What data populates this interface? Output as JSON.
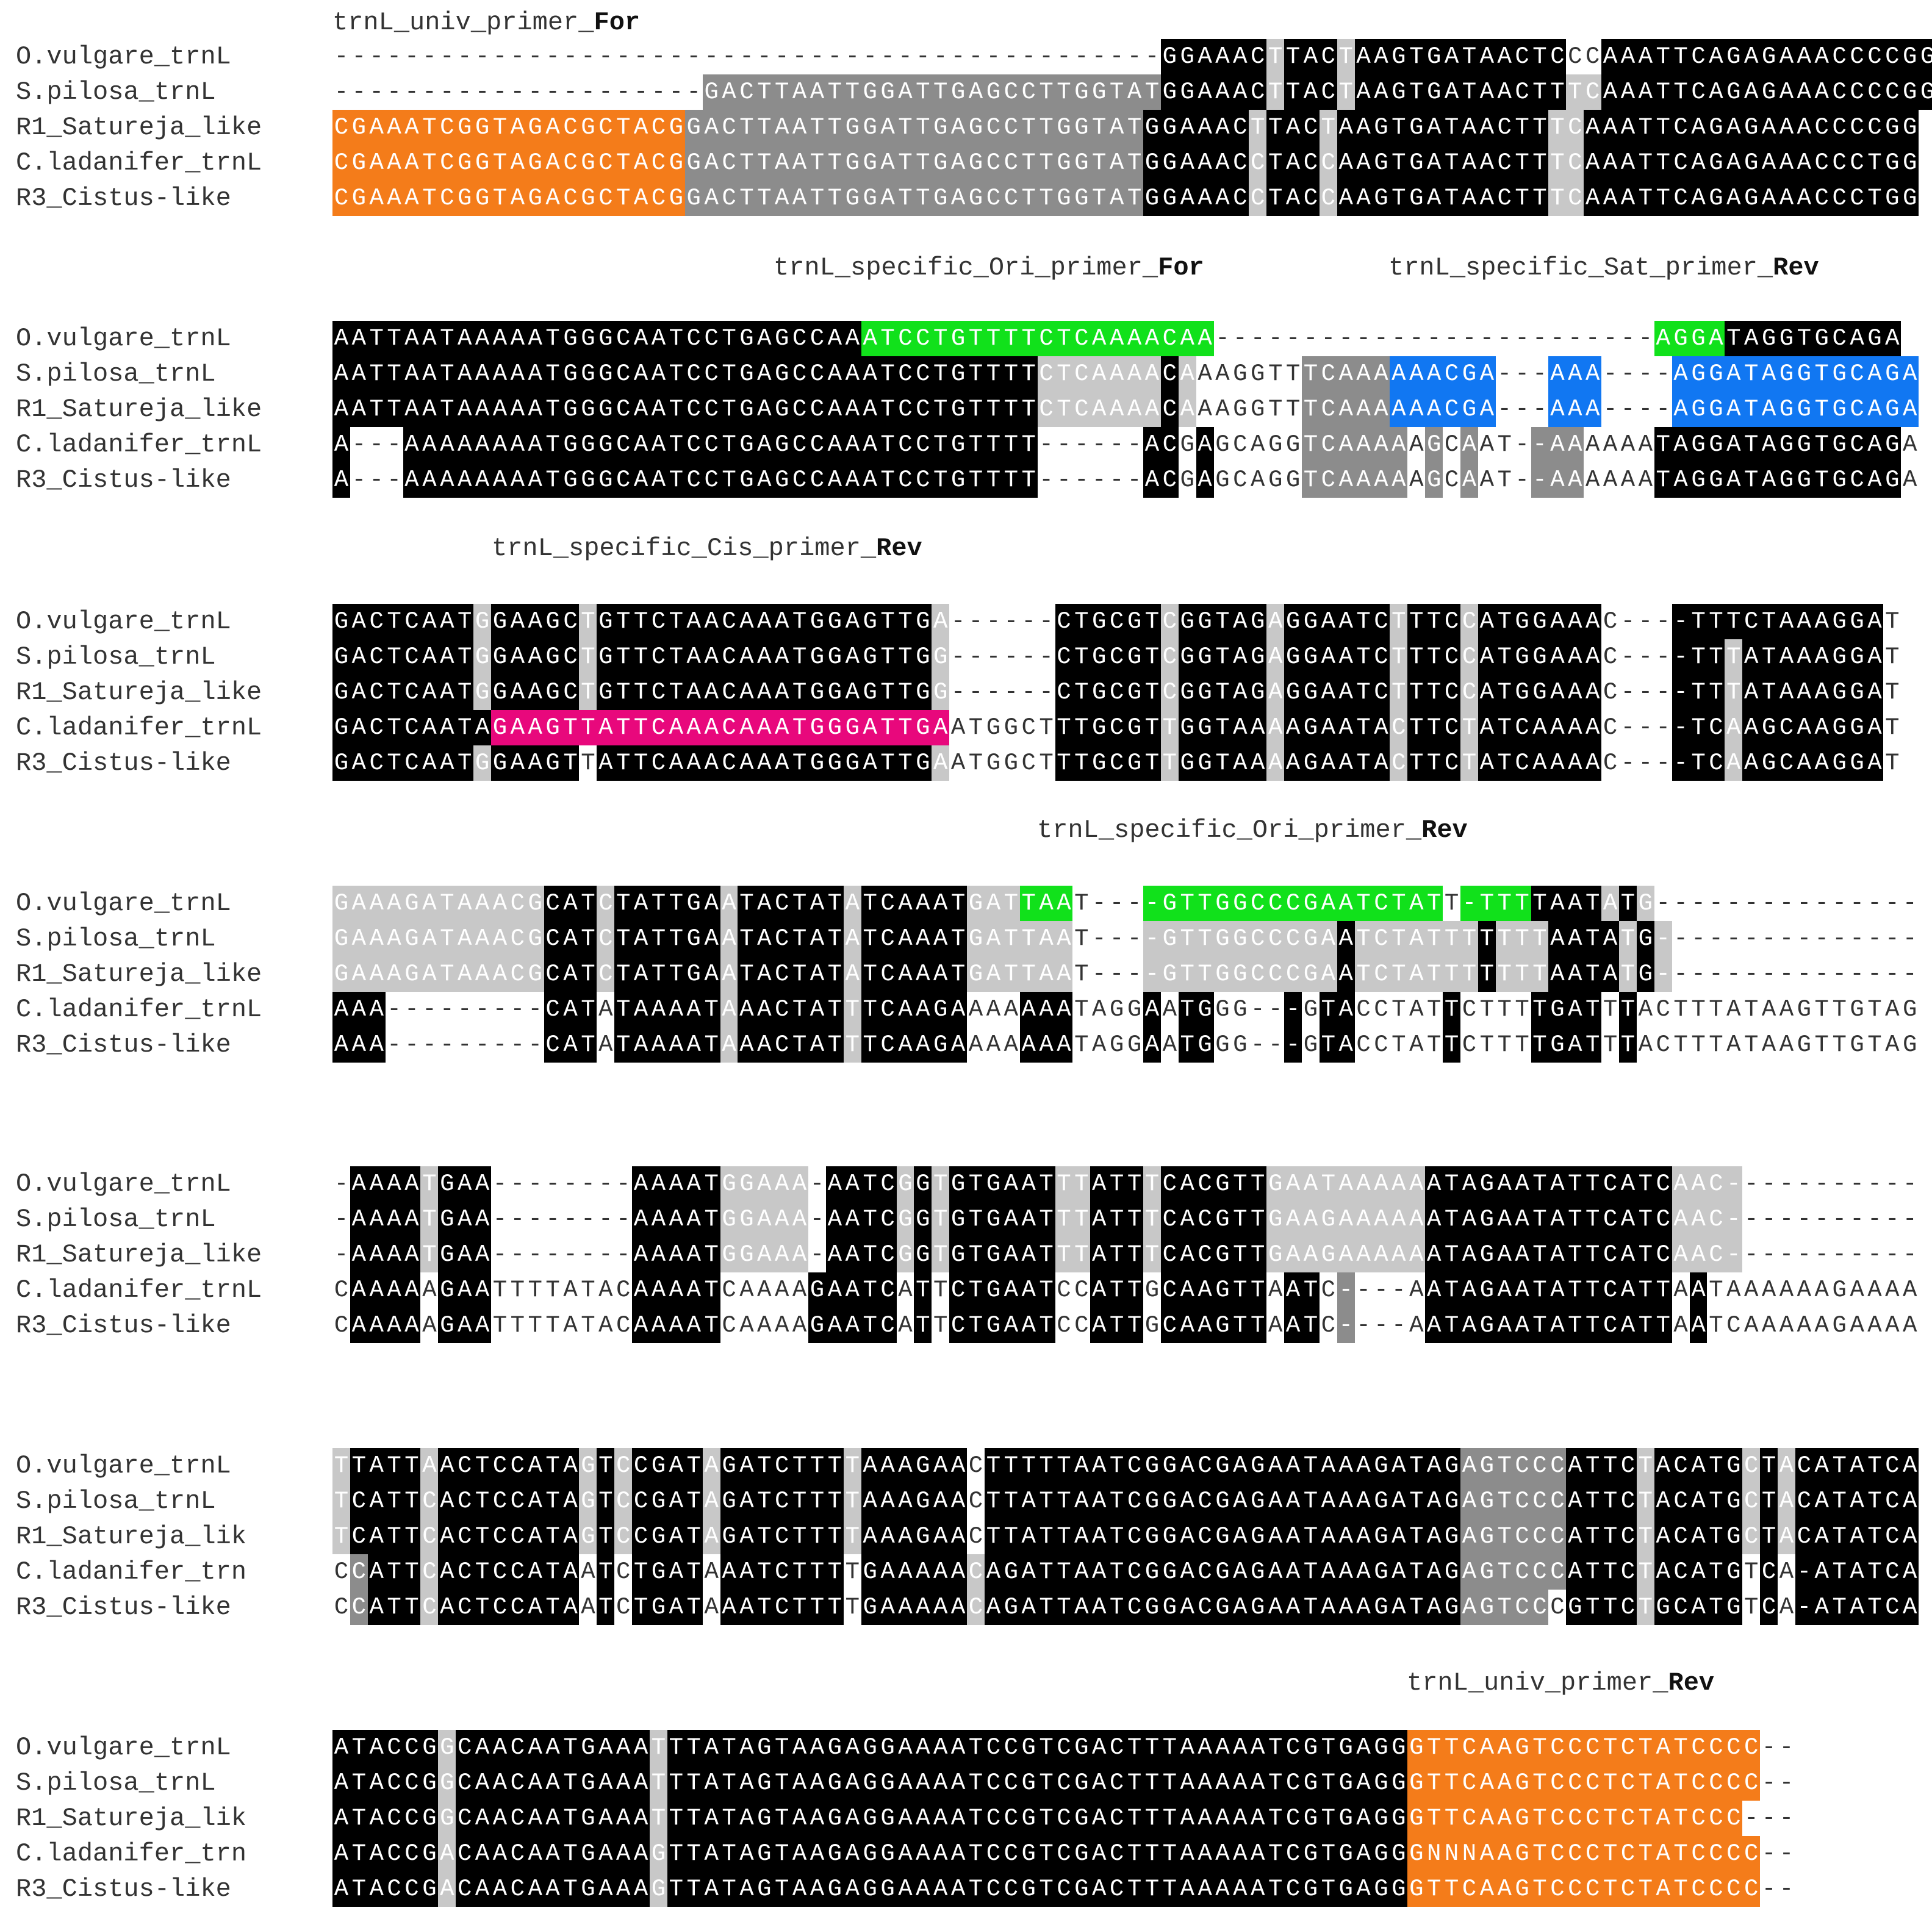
{
  "colors": {
    "K": "#000000",
    "D": "#8c8c8c",
    "L": "#c8c8c8",
    "W": "#ffffff",
    "O": "#f47c1a",
    "G": "#11e11b",
    "B": "#1177f2",
    "P": "#e8087c",
    "text_on_dark": "#ffffff",
    "text_on_light": "#333333"
  },
  "legend_note": "",
  "blocks": [
    {
      "primer_labels": [
        {
          "text": "trnL_univ_primer_",
          "bold": "For"
        }
      ],
      "rows": [
        {
          "name": "O.vulgare_trnL",
          "seq": "-----------------------------------------------GGAAACTTACTAAGTGATAACTCCCAAATTCAGAGAAACCCCGG",
          "shade": "WWWWWWWWWWWWWWWWWWWWWWWWWWWWWWWWWWWWWWWWWWWWWWWKKKKKKLKKKLKKKKKKKKKKKKWWKKKKKKKKKKKKKKKKKKKLKK"
        },
        {
          "name": "S.pilosa_trnL",
          "seq": "---------------------GACTTAATTGGATTGAGCCTTGGTATGGAAACTTACTAAGTGATAACTTTCAAATTCAGAGAAACCCCGG",
          "shade": "WWWWWWWWWWWWWWWWWWWWWDDDDDDDDDDDDDDDDDDDDDDDDDDKKKKKKLKKKLKKKKKKKKKKKKLLKKKKKKKKKKKKKKKKKKKLKK"
        },
        {
          "name": "R1_Satureja_like",
          "seq": "CGAAATCGGTAGACGCTACGGACTTAATTGGATTGAGCCTTGGTATGGAAACTTACTAAGTGATAACTTTCAAATTCAGAGAAACCCCGG",
          "shade": "OOOOOOOOOOOOOOOOOOOODDDDDDDDDDDDDDDDDDDDDDDDDDKKKKKKLKKKLKKKKKKKKKKKKLLKKKKKKKKKKKKKKKKKKKLKK"
        },
        {
          "name": "C.ladanifer_trnL",
          "seq": "CGAAATCGGTAGACGCTACGGACTTAATTGGATTGAGCCTTGGTATGGAAACCTACCAAGTGATAACTTTCAAATTCAGAGAAACCCTGG",
          "shade": "OOOOOOOOOOOOOOOOOOOODDDDDDDDDDDDDDDDDDDDDDDDDDKKKKKKLKKKLKKKKKKKKKKKKLLKKKKKKKKKKKKKKKKKKKLKK"
        },
        {
          "name": "R3_Cistus-like",
          "seq": "CGAAATCGGTAGACGCTACGGACTTAATTGGATTGAGCCTTGGTATGGAAACCTACCAAGTGATAACTTTCAAATTCAGAGAAACCCTGG",
          "shade": "OOOOOOOOOOOOOOOOOOOODDDDDDDDDDDDDDDDDDDDDDDDDDKKKKKKLKKKLKKKKKKKKKKKKLLKKKKKKKKKKKKKKKKKKKLKK"
        }
      ]
    },
    {
      "primer_labels": [
        {
          "text": "trnL_specific_Ori_primer_",
          "bold": "For"
        },
        {
          "text": "trnL_specific_Sat_primer_",
          "bold": "Rev"
        }
      ],
      "rows": [
        {
          "name": "O.vulgare_trnL",
          "seq": "AATTAATAAAAATGGGCAATCCTGAGCCAAATCCTGTTTTCTCAAAACAA-------------------------AGGATAGGTGCAGA",
          "shade": "KKKKKKKKKKKKKKKKKKKKKKKKKKKKKKGGGGGGGGGGGGGGGGGGGGWWWWWWWWWWWWWWWWWWWWWWWWWGGGGKKKKKKKKKK"
        },
        {
          "name": "S.pilosa_trnL",
          "seq": "AATTAATAAAAATGGGCAATCCTGAGCCAAATCCTGTTTTCTCAAAACAAAGGTTTCAAAAAACGA---AAA----AGGATAGGTGCAGA",
          "shade": "KKKKKKKKKKKKKKKKKKKKKKKKKKKKKKKKKKKKKKKKLLLLLLLKLWWWWWWDDDDDBBBBBBWWWBBBWWWWBBBBBBBBBBBBBB"
        },
        {
          "name": "R1_Satureja_like",
          "seq": "AATTAATAAAAATGGGCAATCCTGAGCCAAATCCTGTTTTCTCAAAACAAAGGTTTCAAAAAACGA---AAA----AGGATAGGTGCAGA",
          "shade": "KKKKKKKKKKKKKKKKKKKKKKKKKKKKKKKKKKKKKKKKLLLLLLLKLWWWWWWDDDDDBBBBBBWWWBBBWWWWBBBBBBBBBBBBBB"
        },
        {
          "name": "C.ladanifer_trnL",
          "seq": "A---AAAAAAAATGGGCAATCCTGAGCCAAATCCTGTTTT------ACGAGCAGGTCAAAAAGCAAT--AAAAAATAGGATAGGTGCAGA",
          "shade": "KWWWKKKKKKKKKKKKKKKKKKKKKKKKKKKKKKKKKKKKWWWWWWKKWKWWWWWDDDDDDWDWDWWWDDDWWWWKKKKKKKKKKKKKK"
        },
        {
          "name": "R3_Cistus-like",
          "seq": "A---AAAAAAAATGGGCAATCCTGAGCCAAATCCTGTTTT------ACGAGCAGGTCAAAAAGCAAT--AAAAAATAGGATAGGTGCAGA",
          "shade": "KWWWKKKKKKKKKKKKKKKKKKKKKKKKKKKKKKKKKKKKWWWWWWKKWKWWWWWDDDDDDWDWDWWWDDDWWWWKKKKKKKKKKKKKK"
        }
      ]
    },
    {
      "primer_labels": [
        {
          "text": "trnL_specific_Cis_primer_",
          "bold": "Rev"
        }
      ],
      "rows": [
        {
          "name": "O.vulgare_trnL",
          "seq": "GACTCAATGGAAGCTGTTCTAACAAATGGAGTTGA------CTGCGTCGGTAGAGGAATCTTTCCATGGAAAC----TTTCTAAAGGAT",
          "shade": "KKKKKKKKLKKKKKLKKKKKKKKKKKKKKKKKKKLWWWWWWKKKKKKLKKKKKLKKKKKKLKKKLKKKKKKKWWWWKKKKKKKKKKKK"
        },
        {
          "name": "S.pilosa_trnL",
          "seq": "GACTCAATGGAAGCTGTTCTAACAAATGGAGTTGG------CTGCGTCGGTAGAGGAATCTTTCCATGGAAAC----TTTATAAAGGAT",
          "shade": "KKKKKKKKLKKKKKLKKKKKKKKKKKKKKKKKKKLWWWWWWKKKKKKLKKKKKLKKKKKKLKKKLKKKKKKKWWWWKKKLKKKKKKKK"
        },
        {
          "name": "R1_Satureja_like",
          "seq": "GACTCAATGGAAGCTGTTCTAACAAATGGAGTTGG------CTGCGTCGGTAGAGGAATCTTTCCATGGAAAC----TTTATAAAGGAT",
          "shade": "KKKKKKKKLKKKKKLKKKKKKKKKKKKKKKKKKKLWWWWWWKKKKKKLKKKKKLKKKKKKLKKKLKKKKKKKWWWWKKKLKKKKKKKK"
        },
        {
          "name": "C.ladanifer_trnL",
          "seq": "GACTCAATAGAAGTTATTCAAACAAATGGGATTGAATGGCTTTGCGTTGGTAAAAGAATACTTCTATCAAAAC----TCAAGCAAGGAT",
          "shade": "KKKKKKKKKPPPPPPPPPPPPPPPPPPPPPPPPPPWWWWWWKKKKKKLKKKKKLKKKKKKLKKKLKKKKKKKWWWWKKKLKKKKKKKK"
        },
        {
          "name": "R3_Cistus-like",
          "seq": "GACTCAATGGAAGTTATTCAAACAAATGGGATTGAATGGCTTTGCGTTGGTAAAAGAATACTTCTATCAAAAC----TCAAGCAAGGAT",
          "shade": "KKKKKKKKLKKKKKWKKKKKKKKKKKKKKKKKKKLWWWWWWKKKKKKLKKKKKLKKKKKKLKKKLKKKKKKKWWWWKKKLKKKKKKKK"
        }
      ]
    },
    {
      "primer_labels": [
        {
          "text": "trnL_specific_Ori_primer_",
          "bold": "Rev"
        }
      ],
      "rows": [
        {
          "name": "O.vulgare_trnL",
          "seq": "GAAAGATAAACGCATCTATTGAATACTATATCAAATGATTAAT----GTTGGCCCGAATCTATT-TTTTAATATG---------------",
          "shade": "LLLLLLLLLLLLKKKLKKKKKKLKKKKKKLKKKKKKLLLGGGWWWWGGGGGGGGGGGGGGGGGWGGGGKKKKLKLWWWWWWWWWWWWWWW"
        },
        {
          "name": "S.pilosa_trnL",
          "seq": "GAAAGATAAACGCATCTATTGAATACTATATCAAATGATTAAT----GTTGGCCCGAATCTATTTTTTTAATATG---------------",
          "shade": "LLLLLLLLLLLLKKKLKKKKKKLKKKKKKLKKKKKKLLLLLLWWWWLLLLLLLLLLLKLLLLLLLKLLLKKKKLKLWWWWWWWWWWWWWWW"
        },
        {
          "name": "R1_Satureja_like",
          "seq": "GAAAGATAAACGCATCTATTGAATACTATATCAAATGATTAAT----GTTGGCCCGAATCTATTTTTTTAATATG---------------",
          "shade": "LLLLLLLLLLLLKKKLKKKKKKLKKKKKKLKKKKKKLLLLLLWWWWLLLLLLLLLLLKLLLLLLLKLLLKKKKLKLWWWWWWWWWWWWWWW"
        },
        {
          "name": "C.ladanifer_trnL",
          "seq": "AAA---------CATATAAAATAAACTATTTCAAGAAAAAAATAGGAATGGG---GTACCTATTCTTTTGATTTACTTTATAAGTTGTAG",
          "shade": "KKKWWWWWWWWWKKKWKKKKKKLKKKKKKLKKKKKKWWWKKKWWWWKWKKWWWWKWKKWWWWWKWWWWKKKKWKWWWWWWWWWWWWWWW"
        },
        {
          "name": "R3_Cistus-like",
          "seq": "AAA---------CATATAAAATAAACTATTTCAAGAAAAAAATAGGAATGGG---GTACCTATTCTTTTGATTTACTTTATAAGTTGTAG",
          "shade": "KKKWWWWWWWWWKKKWKKKKKKLKKKKKKLKKKKKKWWWKKKWWWWKWKKWWWWKWKKWWWWWKWWWWKKKKWKWWWWWWWWWWWWWWW"
        }
      ]
    },
    {
      "primer_labels": [],
      "rows": [
        {
          "name": "O.vulgare_trnL",
          "seq": "-AAAATGAA--------AAAATGGAAA-AATCGGTGTGAATTTATTTCACGTTGAATAAAAAATAGAATATTCATCAAC-----------",
          "shade": "WKKKKLKKKWWWWWWWWKKKKKLLLLLWKKKKLKLKKKKKKLLKKKLKKKKKKLLLLLLLLLKKKKKKKKKKKKKKLLLLWWWWWWWWWWW"
        },
        {
          "name": "S.pilosa_trnL",
          "seq": "-AAAATGAA--------AAAATGGAAA-AATCGGTGTGAATTTATTTCACGTTGAAGAAAAAATAGAATATTCATCAAC-----------",
          "shade": "WKKKKLKKKWWWWWWWWKKKKKLLLLLWKKKKLKLKKKKKKLLKKKLKKKKKKLLLLLLLLLKKKKKKKKKKKKKKLLLLWWWWWWWWWWW"
        },
        {
          "name": "R1_Satureja_like",
          "seq": "-AAAATGAA--------AAAATGGAAA-AATCGGTGTGAATTTATTTCACGTTGAAGAAAAAATAGAATATTCATCAAC-----------",
          "shade": "WKKKKLKKKWWWWWWWWKKKKKLLLLLWKKKKLKLKKKKKKLLKKKLKKKKKKLLLLLLLLLKKKKKKKKKKKKKKLLLLWWWWWWWWWWW"
        },
        {
          "name": "C.ladanifer_trnL",
          "seq": "CAAAAAGAATTTTATACAAAATCAAAAGAATCATTCTGAATCCATTGCAAGTTAATC----AATAGAATATTCATTAATAAAAAAGAAAA",
          "shade": "WKKKKWKKKWWWWWWWWKKKKKWWWWWKKKKKWKWKKKKKKWWKKKWKKKKKKWKKWDWWWWKKKKKKKKKKKKKKWKWWWWWWWWWWWWW"
        },
        {
          "name": "R3_Cistus-like",
          "seq": "CAAAAAGAATTTTATACAAAATCAAAAGAATCATTCTGAATCCATTGCAAGTTAATC----AATAGAATATTCATTAATCAAAAAGAAAA",
          "shade": "WKKKKWKKKWWWWWWWWKKKKKWWWWWKKKKKWKWKKKKKKWWKKKWKKKKKKWKKWDWWWWKKKKKKKKKKKKKKWKWWWWWWWWWWWWW"
        }
      ]
    },
    {
      "primer_labels": [],
      "rows": [
        {
          "name": "O.vulgare_trnL",
          "seq": "TTATTAACTCCATAGTCCGATAGATCTTTTAAAGAACTTTTTAATCGGACGAGAATAAAGATAGAGTCCCATTCTACATGCTACATATCA",
          "shade": "LKKKKLKKKKKKKKLKLKKKKLKKKKKKKLKKKKKKWKKKKKKKKKKKKKKKKKKKKKKKKKKKDDDDDDKKKKLKKKKKLKLKKKKKKK"
        },
        {
          "name": "S.pilosa_trnL",
          "seq": "TCATTCACTCCATAGTCCGATAGATCTTTTAAAGAACTTATTAATCGGACGAGAATAAAGATAGAGTCCCATTCTACATGCTACATATCA",
          "shade": "LKKKKLKKKKKKKKLKLKKKKLKKKKKKKLKKKKKKWKKKKKKKKKKKKKKKKKKKKKKKKKKKDDDDDDKKKKLKKKKKLKLKKKKKKK"
        },
        {
          "name": "R1_Satureja_lik",
          "seq": "TCATTCACTCCATAGTCCGATAGATCTTTTAAAGAACTTATTAATCGGACGAGAATAAAGATAGAGTCCCATTCTACATGCTACATATCA",
          "shade": "LKKKKLKKKKKKKKLKLKKKKLKKKKKKKLKKKKKKWKKKKKKKKKKKKKKKKKKKKKKKKKKKDDDDDDKKKKLKKKKKLKLKKKKKKK"
        },
        {
          "name": "C.ladanifer_trn",
          "seq": "CCATTCACTCCATAATCTGATAAATCTTTTGAAAAACAGATTAATCGGACGAGAATAAAGATAGAGTCCCATTCTACATGTCA-ATATCA",
          "shade": "WDKKKLKKKKKKKKWKWKKKKWKKKKKKKWKKKKKKLKKKKKKKKKKKKKKKKKKKKKKKKKKKDDDDDDKKKKLKKKKKWKWKKKKKKK"
        },
        {
          "name": "R3_Cistus-like",
          "seq": "CCATTCACTCCATAATCTGATAAATCTTTTGAAAAACAGATTAATCGGACGAGAATAAAGATAGAGTCCCGTTCTGCATGTCA-ATATCA",
          "shade": "WDKKKLKKKKKKKKWKWKKKKWKKKKKKKWKKKKKKLKKKKKKKKKKKKKKKKKKKKKKKKKKKDDDDDWKKKKLKKKKKWKWKKKKKKK"
        }
      ]
    },
    {
      "primer_labels": [
        {
          "text": "trnL_univ_primer_",
          "bold": "Rev"
        }
      ],
      "rows": [
        {
          "name": "O.vulgare_trnL",
          "seq": "ATACCGGCAACAATGAAATTTATAGTAAGAGGAAAATCCGTCGACTTTAAAAATCGTGAGGGTTCAAGTCCCTCTATCCCC--",
          "shade": "KKKKKKLKKKKKKKKKKKLKKKKKKKKKKKKKKKKKKKKKKKKKKKKKKKKKKKKKKKKKKOOOOOOOOOOOOOOOOOOOOWW"
        },
        {
          "name": "S.pilosa_trnL",
          "seq": "ATACCGGCAACAATGAAATTTATAGTAAGAGGAAAATCCGTCGACTTTAAAAATCGTGAGGGTTCAAGTCCCTCTATCCCC--",
          "shade": "KKKKKKLKKKKKKKKKKKLKKKKKKKKKKKKKKKKKKKKKKKKKKKKKKKKKKKKKKKKKKOOOOOOOOOOOOOOOOOOOOWW"
        },
        {
          "name": "R1_Satureja_lik",
          "seq": "ATACCGGCAACAATGAAATTTATAGTAAGAGGAAAATCCGTCGACTTTAAAAATCGTGAGGGTTCAAGTCCCTCTATCCC---",
          "shade": "KKKKKKLKKKKKKKKKKKLKKKKKKKKKKKKKKKKKKKKKKKKKKKKKKKKKKKKKKKKKKOOOOOOOOOOOOOOOOOOOWWW"
        },
        {
          "name": "C.ladanifer_trn",
          "seq": "ATACCGACAACAATGAAAGTTATAGTAAGAGGAAAATCCGTCGACTTTAAAAATCGTGAGGGNNNAAGTCCCTCTATCCCC--",
          "shade": "KKKKKKLKKKKKKKKKKKLKKKKKKKKKKKKKKKKKKKKKKKKKKKKKKKKKKKKKKKKKKOOOOOOOOOOOOOOOOOOOOWW"
        },
        {
          "name": "R3_Cistus-like",
          "seq": "ATACCGACAACAATGAAAGTTATAGTAAGAGGAAAATCCGTCGACTTTAAAAATCGTGAGGGTTCAAGTCCCTCTATCCCC--",
          "shade": "KKKKKKLKKKKKKKKKKKLKKKKKKKKKKKKKKKKKKKKKKKKKKKKKKKKKKKKKKKKKKOOOOOOOOOOOOOOOOOOOOWW"
        }
      ]
    }
  ]
}
